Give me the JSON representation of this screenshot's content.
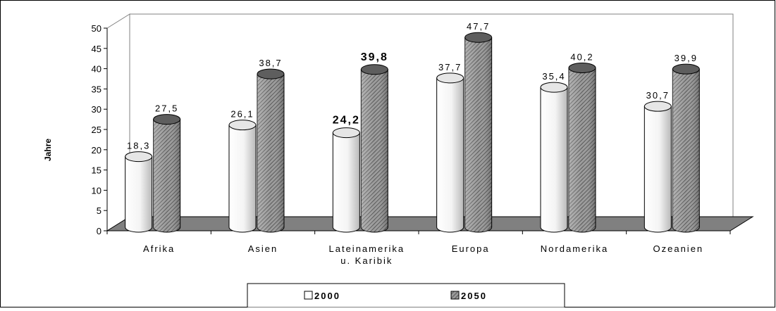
{
  "chart_data": {
    "type": "bar",
    "style": "3d-cylinder",
    "categories": [
      [
        "Afrika"
      ],
      [
        "Asien"
      ],
      [
        "Lateinamerika",
        "u. Karibik"
      ],
      [
        "Europa"
      ],
      [
        "Nordamerika"
      ],
      [
        "Ozeanien"
      ]
    ],
    "series": [
      {
        "name": "2000",
        "values": [
          18.3,
          26.1,
          24.2,
          37.7,
          35.4,
          30.7
        ],
        "fill": "white-gradient"
      },
      {
        "name": "2050",
        "values": [
          27.5,
          38.7,
          39.8,
          47.7,
          40.2,
          39.9
        ],
        "fill": "hatched-dark"
      }
    ],
    "value_labels": {
      "2000": [
        "18,3",
        "26,1",
        "24,2",
        "37,7",
        "35,4",
        "30,7"
      ],
      "2050": [
        "27,5",
        "38,7",
        "39,8",
        "47,7",
        "40,2",
        "39,9"
      ]
    },
    "bold_labels": [
      {
        "series": 0,
        "index": 2
      },
      {
        "series": 1,
        "index": 2
      }
    ],
    "ylabel": "Jahre",
    "xlabel": "",
    "title": "",
    "ylim": [
      0,
      50
    ],
    "yticks": [
      0,
      5,
      10,
      15,
      20,
      25,
      30,
      35,
      40,
      45,
      50
    ],
    "grid": false,
    "legend_position": "bottom",
    "colors": {
      "floor": "#808080",
      "bar2000": "#f2f2f2",
      "bar2050": "#7a7a7a",
      "frame": "#000000"
    }
  }
}
